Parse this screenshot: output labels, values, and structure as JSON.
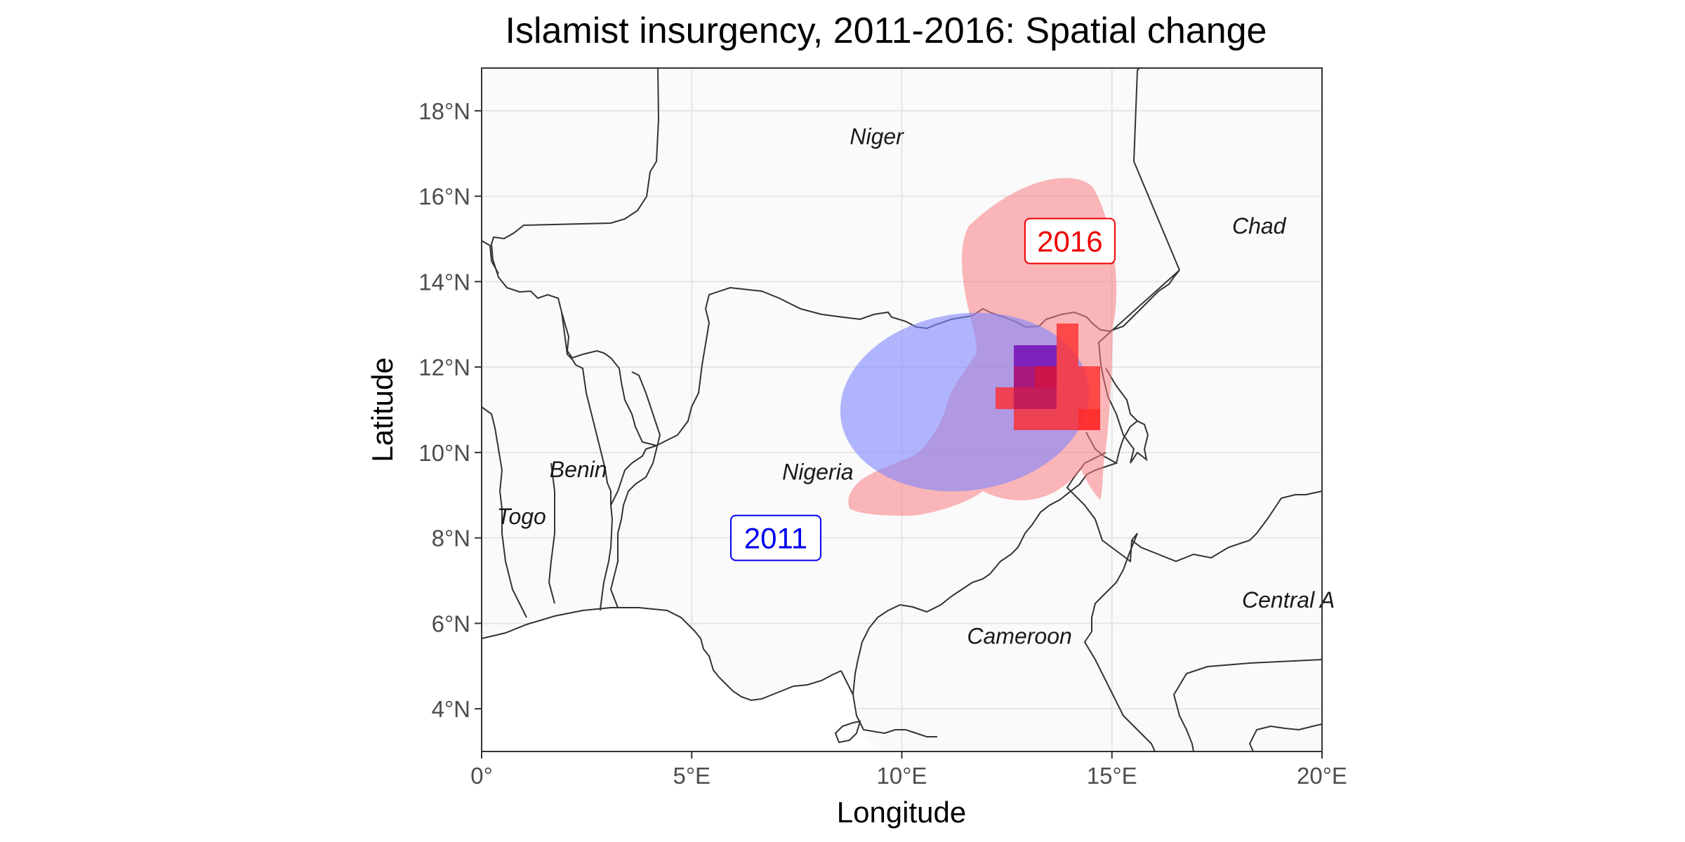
{
  "title": "Islamist insurgency, 2011-2016: Spatial change",
  "axes": {
    "x": {
      "title": "Longitude",
      "range": [
        0,
        20
      ],
      "ticks": [
        {
          "value": 0,
          "label": "0°"
        },
        {
          "value": 5,
          "label": "5°E"
        },
        {
          "value": 10,
          "label": "10°E"
        },
        {
          "value": 15,
          "label": "15°E"
        },
        {
          "value": 20,
          "label": "20°E"
        }
      ]
    },
    "y": {
      "title": "Latitude",
      "range": [
        3,
        19
      ],
      "ticks": [
        {
          "value": 4,
          "label": "4°N"
        },
        {
          "value": 6,
          "label": "6°N"
        },
        {
          "value": 8,
          "label": "8°N"
        },
        {
          "value": 10,
          "label": "10°N"
        },
        {
          "value": 12,
          "label": "12°N"
        },
        {
          "value": 14,
          "label": "14°N"
        },
        {
          "value": 16,
          "label": "16°N"
        },
        {
          "value": 18,
          "label": "18°N"
        }
      ]
    }
  },
  "countries": [
    {
      "name": "Niger",
      "lon": 9.4,
      "lat": 17.4
    },
    {
      "name": "Chad",
      "lon": 18.5,
      "lat": 15.3
    },
    {
      "name": "Benin",
      "lon": 2.3,
      "lat": 9.6
    },
    {
      "name": "Togo",
      "lon": 0.95,
      "lat": 8.5
    },
    {
      "name": "Nigeria",
      "lon": 8.0,
      "lat": 9.55
    },
    {
      "name": "Cameroon",
      "lon": 12.8,
      "lat": 5.7
    },
    {
      "name": "Central A",
      "lon": 19.2,
      "lat": 6.55
    }
  ],
  "years": [
    {
      "label": "2011",
      "lon": 7.0,
      "lat": 8.0,
      "color": "#0000ee"
    },
    {
      "label": "2016",
      "lon": 14.0,
      "lat": 14.95,
      "color": "#ee0000"
    }
  ],
  "colors": {
    "panel_background": "#fafafa",
    "grid": "#e5e5e5",
    "border": "#333333",
    "ocean": "#ffffff",
    "region_2011": "#7f86ff",
    "region_2016": "#f87b7f",
    "cells_2011": "#6a1ccf",
    "cells_2016": "#ff2a2a",
    "overlap": "#c8104a"
  }
}
